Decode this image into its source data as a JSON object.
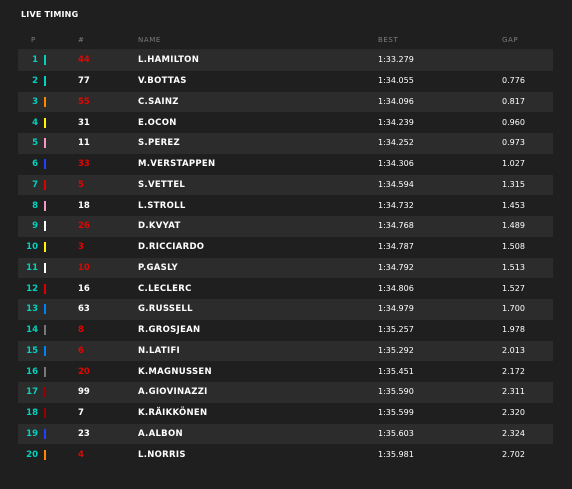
{
  "title": "LIVE TIMING",
  "headers": {
    "pos": "P",
    "num": "#",
    "name": "NAME",
    "best": "BEST",
    "gap": "GAP"
  },
  "rows": [
    {
      "pos": "1",
      "num": "44",
      "num_color": "#e10600",
      "team_color": "#00d2be",
      "name": "L.HAMILTON",
      "best": "1:33.279",
      "gap": ""
    },
    {
      "pos": "2",
      "num": "77",
      "num_color": "#ffffff",
      "team_color": "#00d2be",
      "name": "V.BOTTAS",
      "best": "1:34.055",
      "gap": "0.776"
    },
    {
      "pos": "3",
      "num": "55",
      "num_color": "#e10600",
      "team_color": "#ff8700",
      "name": "C.SAINZ",
      "best": "1:34.096",
      "gap": "0.817"
    },
    {
      "pos": "4",
      "num": "31",
      "num_color": "#ffffff",
      "team_color": "#fff500",
      "name": "E.OCON",
      "best": "1:34.239",
      "gap": "0.960"
    },
    {
      "pos": "5",
      "num": "11",
      "num_color": "#ffffff",
      "team_color": "#f596c8",
      "name": "S.PEREZ",
      "best": "1:34.252",
      "gap": "0.973"
    },
    {
      "pos": "6",
      "num": "33",
      "num_color": "#e10600",
      "team_color": "#1e41ff",
      "name": "M.VERSTAPPEN",
      "best": "1:34.306",
      "gap": "1.027"
    },
    {
      "pos": "7",
      "num": "5",
      "num_color": "#e10600",
      "team_color": "#dc0000",
      "name": "S.VETTEL",
      "best": "1:34.594",
      "gap": "1.315"
    },
    {
      "pos": "8",
      "num": "18",
      "num_color": "#ffffff",
      "team_color": "#f596c8",
      "name": "L.STROLL",
      "best": "1:34.732",
      "gap": "1.453"
    },
    {
      "pos": "9",
      "num": "26",
      "num_color": "#e10600",
      "team_color": "#ffffff",
      "name": "D.KVYAT",
      "best": "1:34.768",
      "gap": "1.489"
    },
    {
      "pos": "10",
      "num": "3",
      "num_color": "#e10600",
      "team_color": "#fff500",
      "name": "D.RICCIARDO",
      "best": "1:34.787",
      "gap": "1.508"
    },
    {
      "pos": "11",
      "num": "10",
      "num_color": "#e10600",
      "team_color": "#ffffff",
      "name": "P.GASLY",
      "best": "1:34.792",
      "gap": "1.513"
    },
    {
      "pos": "12",
      "num": "16",
      "num_color": "#ffffff",
      "team_color": "#dc0000",
      "name": "C.LECLERC",
      "best": "1:34.806",
      "gap": "1.527"
    },
    {
      "pos": "13",
      "num": "63",
      "num_color": "#ffffff",
      "team_color": "#0082fa",
      "name": "G.RUSSELL",
      "best": "1:34.979",
      "gap": "1.700"
    },
    {
      "pos": "14",
      "num": "8",
      "num_color": "#e10600",
      "team_color": "#787878",
      "name": "R.GROSJEAN",
      "best": "1:35.257",
      "gap": "1.978"
    },
    {
      "pos": "15",
      "num": "6",
      "num_color": "#e10600",
      "team_color": "#0082fa",
      "name": "N.LATIFI",
      "best": "1:35.292",
      "gap": "2.013"
    },
    {
      "pos": "16",
      "num": "20",
      "num_color": "#e10600",
      "team_color": "#787878",
      "name": "K.MAGNUSSEN",
      "best": "1:35.451",
      "gap": "2.172"
    },
    {
      "pos": "17",
      "num": "99",
      "num_color": "#ffffff",
      "team_color": "#9b0000",
      "name": "A.GIOVINAZZI",
      "best": "1:35.590",
      "gap": "2.311"
    },
    {
      "pos": "18",
      "num": "7",
      "num_color": "#ffffff",
      "team_color": "#9b0000",
      "name": "K.RÄIKKÖNEN",
      "best": "1:35.599",
      "gap": "2.320"
    },
    {
      "pos": "19",
      "num": "23",
      "num_color": "#ffffff",
      "team_color": "#1e41ff",
      "name": "A.ALBON",
      "best": "1:35.603",
      "gap": "2.324"
    },
    {
      "pos": "20",
      "num": "4",
      "num_color": "#e10600",
      "team_color": "#ff8700",
      "name": "L.NORRIS",
      "best": "1:35.981",
      "gap": "2.702"
    }
  ],
  "colors": {
    "background": "#1f1f1f",
    "row_alt": "#2c2c2c",
    "position_text": "#00d2be",
    "header_text": "#7c7c7c"
  }
}
